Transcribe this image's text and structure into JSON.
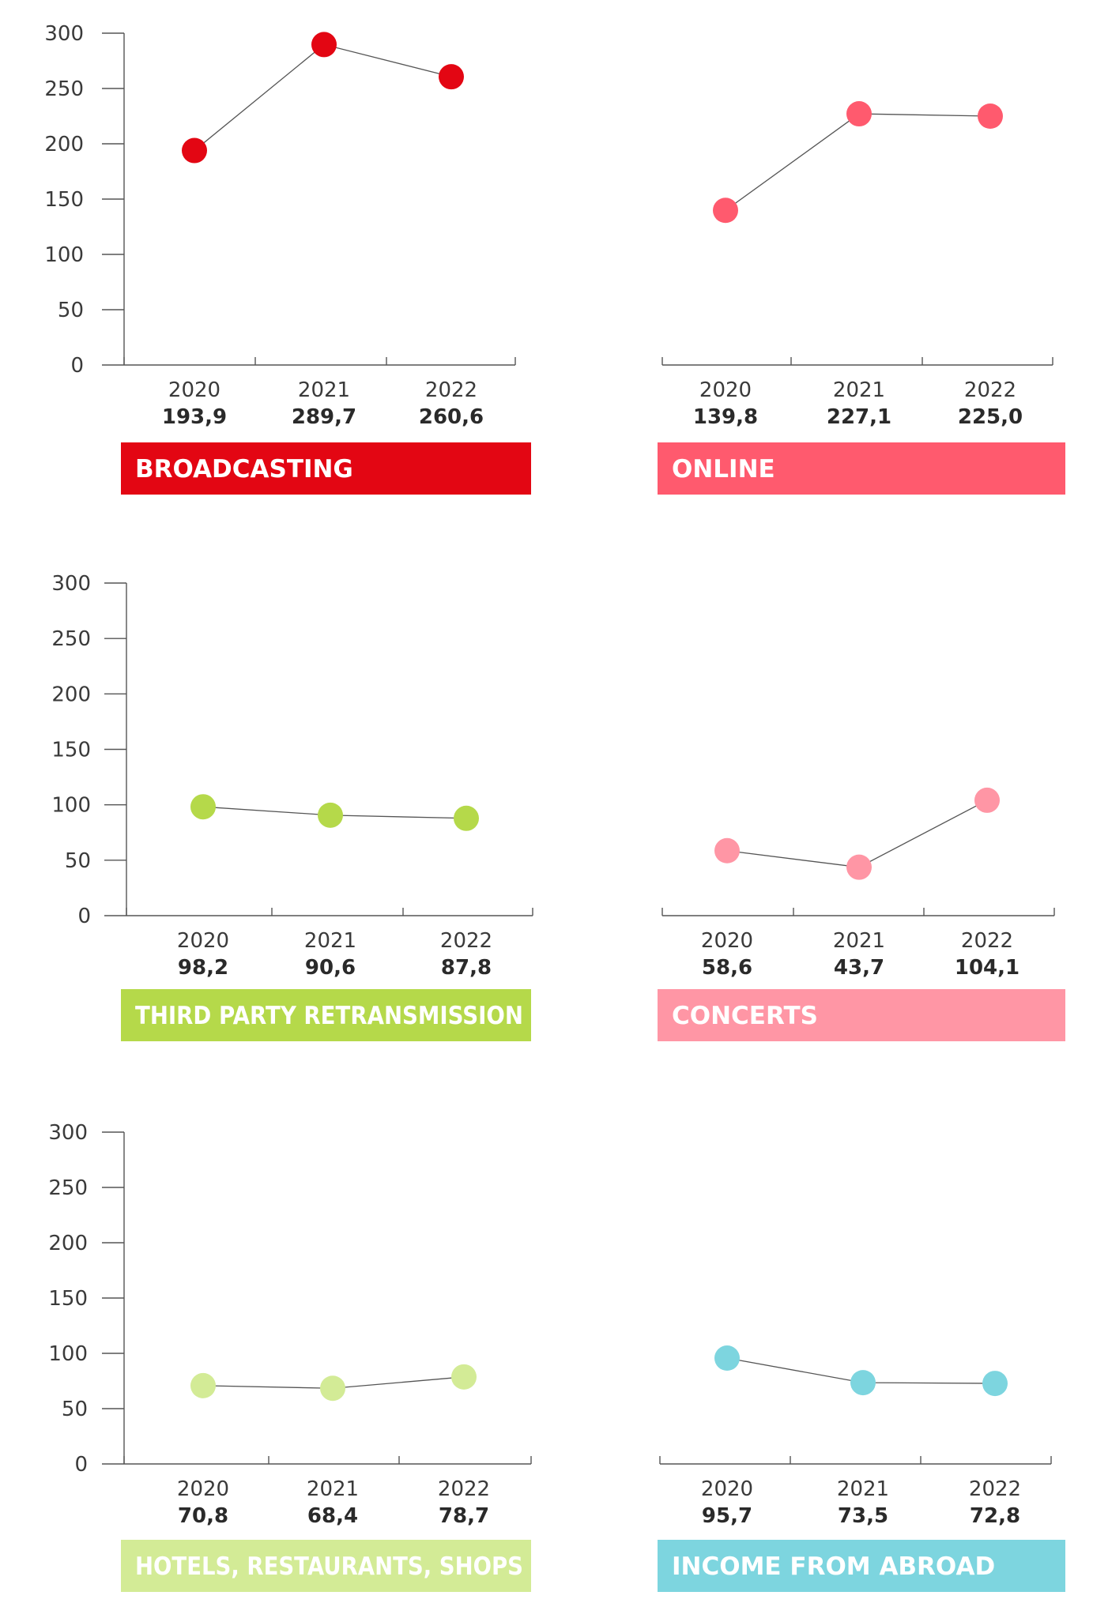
{
  "charts": [
    {
      "label": "BROADCASTING",
      "color": "#e30613",
      "show_y_axis": true,
      "y_ticks": [
        "300",
        "250",
        "200",
        "150",
        "100",
        "50",
        "0"
      ],
      "chart_data": {
        "type": "line",
        "title": "BROADCASTING",
        "x": [
          "2020",
          "2021",
          "2022"
        ],
        "y": [
          193.9,
          289.7,
          260.6
        ],
        "value_labels": [
          "193,9",
          "289,7",
          "260,6"
        ],
        "ylim": [
          0,
          300
        ]
      }
    },
    {
      "label": "ONLINE",
      "color": "#ff5a6e",
      "show_y_axis": false,
      "y_ticks": [],
      "chart_data": {
        "type": "line",
        "title": "ONLINE",
        "x": [
          "2020",
          "2021",
          "2022"
        ],
        "y": [
          139.8,
          227.1,
          225.0
        ],
        "value_labels": [
          "139,8",
          "227,1",
          "225,0"
        ],
        "ylim": [
          0,
          300
        ]
      }
    },
    {
      "label": "THIRD PARTY RETRANSMISSION",
      "color": "#b5d94a",
      "show_y_axis": true,
      "y_ticks": [
        "300",
        "250",
        "200",
        "150",
        "100",
        "50",
        "0"
      ],
      "chart_data": {
        "type": "line",
        "title": "THIRD PARTY RETRANSMISSION",
        "x": [
          "2020",
          "2021",
          "2022"
        ],
        "y": [
          98.2,
          90.6,
          87.8
        ],
        "value_labels": [
          "98,2",
          "90,6",
          "87,8"
        ],
        "ylim": [
          0,
          300
        ]
      }
    },
    {
      "label": "CONCERTS",
      "color": "#ff96a5",
      "show_y_axis": false,
      "y_ticks": [],
      "chart_data": {
        "type": "line",
        "title": "CONCERTS",
        "x": [
          "2020",
          "2021",
          "2022"
        ],
        "y": [
          58.6,
          43.7,
          104.1
        ],
        "value_labels": [
          "58,6",
          "43,7",
          "104,1"
        ],
        "ylim": [
          0,
          300
        ]
      }
    },
    {
      "label": "HOTELS, RESTAURANTS, SHOPS",
      "color": "#d3eb96",
      "show_y_axis": true,
      "y_ticks": [
        "300",
        "250",
        "200",
        "150",
        "100",
        "50",
        "0"
      ],
      "chart_data": {
        "type": "line",
        "title": "HOTELS, RESTAURANTS, SHOPS",
        "x": [
          "2020",
          "2021",
          "2022"
        ],
        "y": [
          70.8,
          68.4,
          78.7
        ],
        "value_labels": [
          "70,8",
          "68,4",
          "78,7"
        ],
        "ylim": [
          0,
          300
        ]
      }
    },
    {
      "label": "INCOME FROM ABROAD",
      "color": "#7dd5df",
      "show_y_axis": false,
      "y_ticks": [],
      "chart_data": {
        "type": "line",
        "title": "INCOME FROM ABROAD",
        "x": [
          "2020",
          "2021",
          "2022"
        ],
        "y": [
          95.7,
          73.5,
          72.8
        ],
        "value_labels": [
          "95,7",
          "73,5",
          "72,8"
        ],
        "ylim": [
          0,
          300
        ]
      }
    }
  ]
}
